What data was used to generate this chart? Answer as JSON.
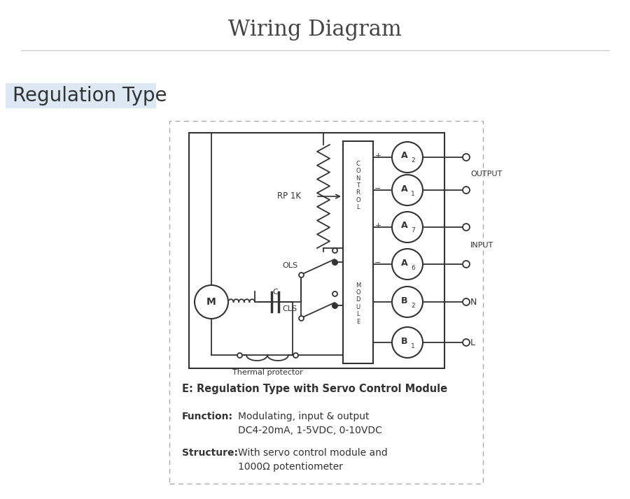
{
  "title": "Wiring Diagram",
  "title_fontsize": 22,
  "title_color": "#444444",
  "bg_color": "#ffffff",
  "section_label": "Regulation Type",
  "section_bg": "#dce9f5",
  "section_text_color": "#333333",
  "section_fontsize": 20,
  "line_color": "#333333",
  "diagram_label": "E: Regulation Type with Servo Control Module",
  "function_bold": "Function:",
  "function_text1": "  Modulating, input & output",
  "function_text2": "            DC4-20mA, 1-5VDC, 0-10VDC",
  "structure_bold": "Structure:",
  "structure_text1": " With servo control module and",
  "structure_text2": "            1000Ω potentiometer",
  "output_label": "OUTPUT",
  "input_label": "INPUT",
  "N_label": "N",
  "L_label": "L",
  "rp1k_label": "RP 1K",
  "ols_label": "OLS",
  "cls_label": "CLS",
  "thermal_label": "Thermal protector"
}
